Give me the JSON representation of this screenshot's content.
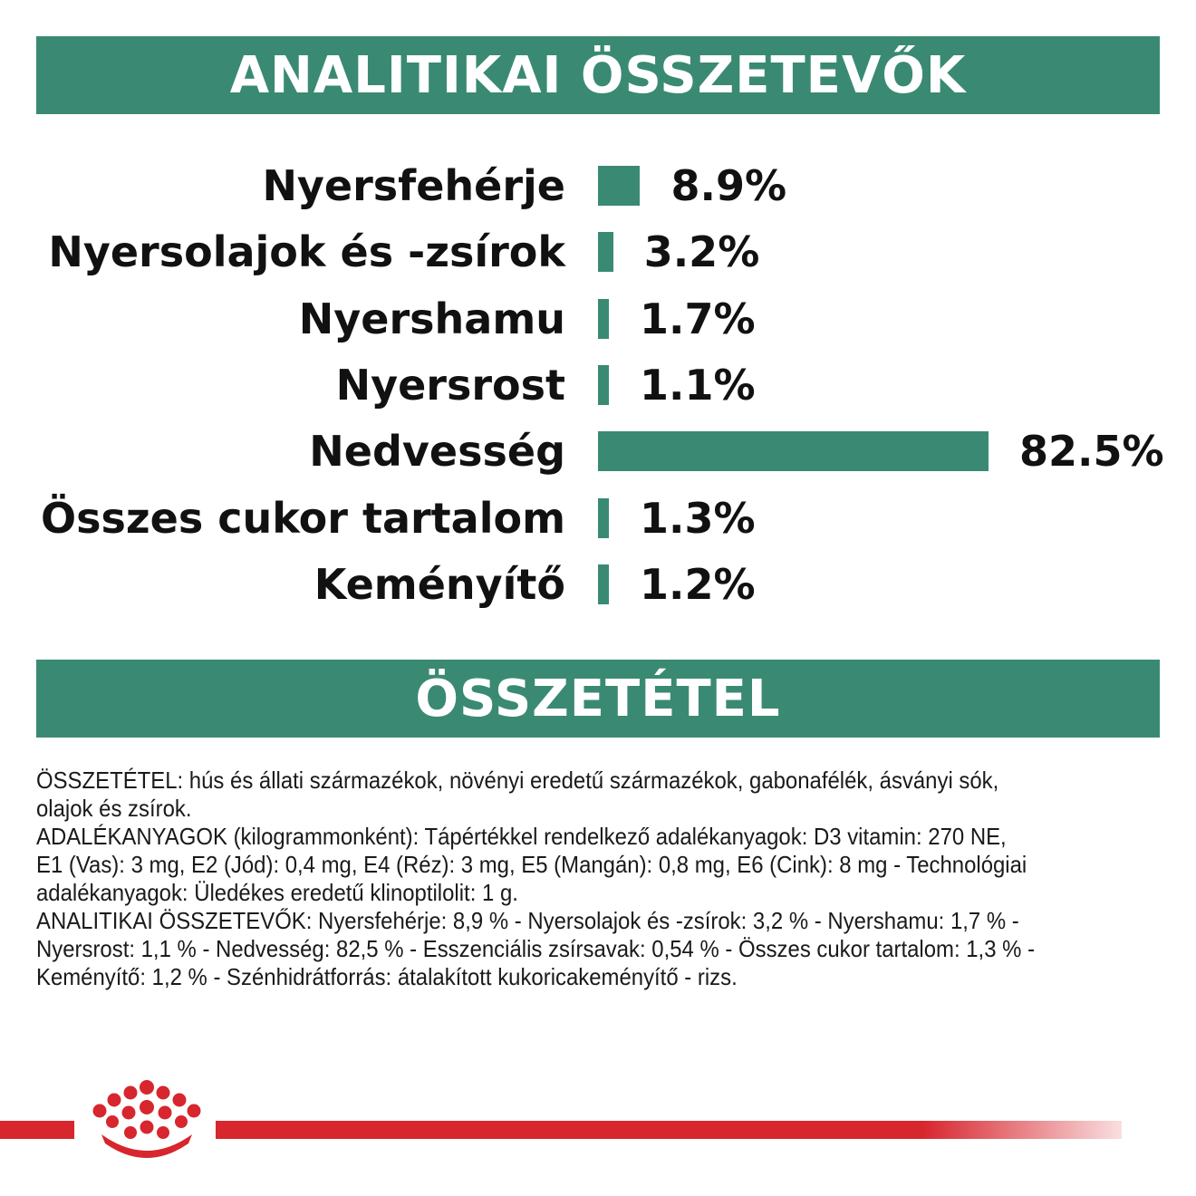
{
  "header_title": "ANALITIKAI ÖSSZETEVŐK",
  "section_title": "ÖSSZETÉTEL",
  "colors": {
    "accent": "#3a8a73",
    "brand_red": "#d7262e"
  },
  "chart_data": {
    "type": "bar",
    "orientation": "horizontal",
    "categories": [
      "Nyersfehérje",
      "Nyersolajok és -zsírok",
      "Nyershamu",
      "Nyersrost",
      "Nedvesség",
      "Összes cukor tartalom",
      "Keményítő"
    ],
    "values": [
      8.9,
      3.2,
      1.7,
      1.1,
      82.5,
      1.3,
      1.2
    ],
    "value_labels": [
      "8.9%",
      "3.2%",
      "1.7%",
      "1.1%",
      "82.5%",
      "1.3%",
      "1.2%"
    ],
    "xlim": [
      0,
      82.5
    ],
    "grid": false
  },
  "composition": {
    "lines": [
      "ÖSSZETÉTEL: hús és állati származékok, növényi eredetű származékok, gabonafélék, ásványi sók,",
      "olajok és zsírok.",
      "ADALÉKANYAGOK (kilogrammonként): Tápértékkel rendelkező adalékanyagok: D3 vitamin: 270 NE,",
      "E1 (Vas): 3 mg, E2 (Jód): 0,4 mg, E4 (Réz): 3 mg, E5 (Mangán): 0,8 mg, E6 (Cink): 8 mg - Technológiai",
      "adalékanyagok: Üledékes eredetű klinoptilolit: 1 g.",
      "ANALITIKAI ÖSSZETEVŐK: Nyersfehérje: 8,9 % - Nyersolajok és -zsírok: 3,2 % - Nyershamu: 1,7 % -",
      "Nyersrost: 1,1 % - Nedvesség: 82,5 % - Esszenciális zsírsavak: 0,54 % - Összes cukor tartalom: 1,3 % -",
      "Keményítő: 1,2 % - Szénhidrátforrás: átalakított kukoricakeményítő - rizs."
    ]
  },
  "logo": {
    "icon": "crown-icon"
  }
}
